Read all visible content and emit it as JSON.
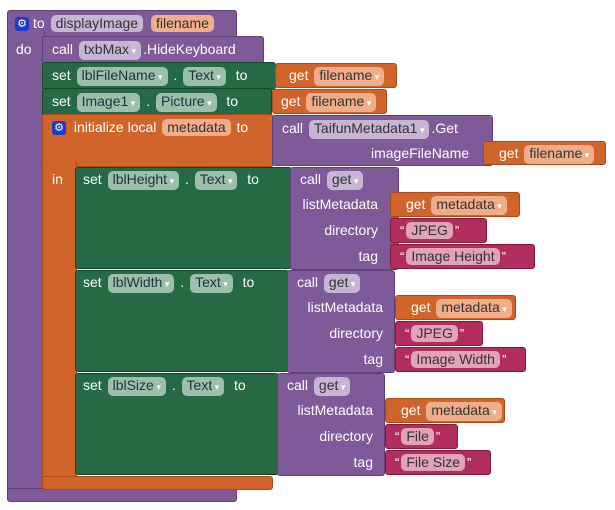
{
  "procedure": {
    "to": "to",
    "name": "displayImage",
    "param": "filename",
    "do": "do"
  },
  "hide": {
    "call": "call",
    "component": "txbMax",
    "method": ".HideKeyboard"
  },
  "set1": {
    "set": "set",
    "component": "lblFileName",
    "property": "Text",
    "to": "to",
    "get": "get",
    "var": "filename"
  },
  "set2": {
    "set": "set",
    "component": "Image1",
    "property": "Picture",
    "to": "to",
    "get": "get",
    "var": "filename"
  },
  "init": {
    "label": "initialize local",
    "var": "metadata",
    "to": "to",
    "in": "in"
  },
  "taifun": {
    "call": "call",
    "component": "TaifunMetadata1",
    "method": ".Get",
    "arg": "imageFileName",
    "get": "get",
    "var": "filename"
  },
  "dot": ".",
  "rows": [
    {
      "set": "set",
      "component": "lblHeight",
      "property": "Text",
      "to": "to",
      "call": "call",
      "method": "get",
      "arg1": "listMetadata",
      "arg2": "directory",
      "arg3": "tag",
      "get": "get",
      "var": "metadata",
      "directory": "JPEG",
      "tag": "Image Height"
    },
    {
      "set": "set",
      "component": "lblWidth",
      "property": "Text",
      "to": "to",
      "call": "call",
      "method": "get",
      "arg1": "listMetadata",
      "arg2": "directory",
      "arg3": "tag",
      "get": "get",
      "var": "metadata",
      "directory": "JPEG",
      "tag": "Image Width"
    },
    {
      "set": "set",
      "component": "lblSize",
      "property": "Text",
      "to": "to",
      "call": "call",
      "method": "get",
      "arg1": "listMetadata",
      "arg2": "directory",
      "arg3": "tag",
      "get": "get",
      "var": "metadata",
      "directory": "File",
      "tag": "File Size"
    }
  ],
  "quotes": {
    "open": "“",
    "close": "”"
  }
}
